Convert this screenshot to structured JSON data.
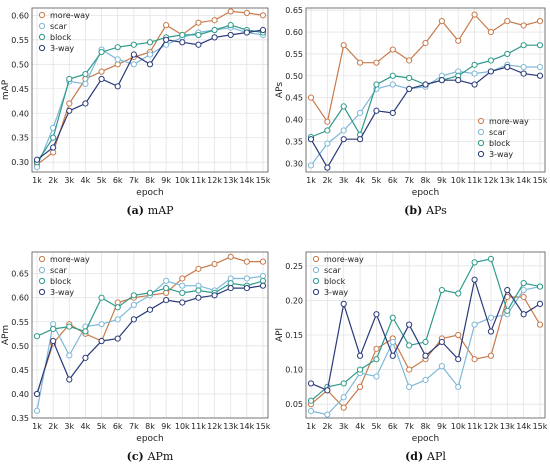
{
  "chart_data": [
    {
      "type": "line",
      "caption_letter": "(a)",
      "caption_text": "mAP",
      "xlabel": "epoch",
      "ylabel": "mAP",
      "categories": [
        "1k",
        "2k",
        "3k",
        "4k",
        "5k",
        "6k",
        "7k",
        "8k",
        "9k",
        "10k",
        "11k",
        "12k",
        "13k",
        "14k",
        "15k"
      ],
      "ylim": [
        0.28,
        0.615
      ],
      "yticks": [
        0.3,
        0.35,
        0.4,
        0.45,
        0.5,
        0.55,
        0.6
      ],
      "ytick_labels": [
        "0.30",
        "0.35",
        "0.40",
        "0.45",
        "0.50",
        "0.55",
        "0.60"
      ],
      "grid": true,
      "legend_position": "top-left",
      "series": [
        {
          "name": "more-way",
          "color": "#c87a4a",
          "values": [
            0.295,
            0.32,
            0.42,
            0.47,
            0.485,
            0.5,
            0.515,
            0.525,
            0.58,
            0.56,
            0.585,
            0.59,
            0.608,
            0.605,
            0.6
          ]
        },
        {
          "name": "scar",
          "color": "#7fb8d8",
          "values": [
            0.29,
            0.37,
            0.465,
            0.46,
            0.53,
            0.51,
            0.5,
            0.52,
            0.54,
            0.555,
            0.565,
            0.57,
            0.575,
            0.565,
            0.56
          ]
        },
        {
          "name": "block",
          "color": "#2e9a8a",
          "values": [
            0.3,
            0.35,
            0.47,
            0.48,
            0.525,
            0.535,
            0.54,
            0.545,
            0.555,
            0.56,
            0.56,
            0.57,
            0.58,
            0.57,
            0.565
          ]
        },
        {
          "name": "3-way",
          "color": "#2a3a7a",
          "values": [
            0.305,
            0.33,
            0.405,
            0.42,
            0.47,
            0.455,
            0.52,
            0.5,
            0.55,
            0.545,
            0.54,
            0.555,
            0.56,
            0.565,
            0.57
          ]
        }
      ]
    },
    {
      "type": "line",
      "caption_letter": "(b)",
      "caption_text": "APs",
      "xlabel": "epoch",
      "ylabel": "APs",
      "categories": [
        "1k",
        "2k",
        "3k",
        "4k",
        "5k",
        "6k",
        "7k",
        "8k",
        "9k",
        "10k",
        "11k",
        "12k",
        "13k",
        "14k",
        "15k"
      ],
      "ylim": [
        0.28,
        0.655
      ],
      "yticks": [
        0.3,
        0.35,
        0.4,
        0.45,
        0.5,
        0.55,
        0.6,
        0.65
      ],
      "ytick_labels": [
        "0.30",
        "0.35",
        "0.40",
        "0.45",
        "0.50",
        "0.55",
        "0.60",
        "0.65"
      ],
      "grid": true,
      "legend_position": "bottom-right",
      "series": [
        {
          "name": "more-way",
          "color": "#c87a4a",
          "values": [
            0.45,
            0.395,
            0.57,
            0.53,
            0.53,
            0.56,
            0.535,
            0.575,
            0.625,
            0.58,
            0.64,
            0.6,
            0.625,
            0.615,
            0.625
          ]
        },
        {
          "name": "scar",
          "color": "#7fb8d8",
          "values": [
            0.295,
            0.345,
            0.375,
            0.415,
            0.47,
            0.48,
            0.47,
            0.475,
            0.5,
            0.51,
            0.505,
            0.51,
            0.525,
            0.52,
            0.52
          ]
        },
        {
          "name": "block",
          "color": "#2e9a8a",
          "values": [
            0.36,
            0.375,
            0.43,
            0.365,
            0.48,
            0.5,
            0.495,
            0.48,
            0.49,
            0.5,
            0.525,
            0.535,
            0.55,
            0.57,
            0.57
          ]
        },
        {
          "name": "3-way",
          "color": "#2a3a7a",
          "values": [
            0.355,
            0.29,
            0.355,
            0.355,
            0.42,
            0.415,
            0.47,
            0.48,
            0.49,
            0.49,
            0.48,
            0.51,
            0.52,
            0.505,
            0.5
          ]
        }
      ]
    },
    {
      "type": "line",
      "caption_letter": "(c)",
      "caption_text": "APm",
      "xlabel": "epoch",
      "ylabel": "APm",
      "categories": [
        "1k",
        "2k",
        "3k",
        "4k",
        "5k",
        "6k",
        "7k",
        "8k",
        "9k",
        "10k",
        "11k",
        "12k",
        "13k",
        "14k",
        "15k"
      ],
      "ylim": [
        0.35,
        0.695
      ],
      "yticks": [
        0.35,
        0.4,
        0.45,
        0.5,
        0.55,
        0.6,
        0.65
      ],
      "ytick_labels": [
        "0.35",
        "0.40",
        "0.45",
        "0.50",
        "0.55",
        "0.60",
        "0.65"
      ],
      "grid": true,
      "legend_position": "top-left",
      "series": [
        {
          "name": "more-way",
          "color": "#c87a4a",
          "values": [
            0.4,
            0.505,
            0.545,
            0.525,
            0.51,
            0.59,
            0.6,
            0.605,
            0.61,
            0.64,
            0.66,
            0.67,
            0.685,
            0.675,
            0.675
          ]
        },
        {
          "name": "scar",
          "color": "#7fb8d8",
          "values": [
            0.365,
            0.545,
            0.48,
            0.54,
            0.545,
            0.555,
            0.585,
            0.605,
            0.635,
            0.625,
            0.625,
            0.615,
            0.64,
            0.64,
            0.645
          ]
        },
        {
          "name": "block",
          "color": "#2e9a8a",
          "values": [
            0.52,
            0.535,
            0.54,
            0.53,
            0.6,
            0.58,
            0.605,
            0.61,
            0.62,
            0.61,
            0.615,
            0.61,
            0.63,
            0.625,
            0.635
          ]
        },
        {
          "name": "3-way",
          "color": "#2a3a7a",
          "values": [
            0.4,
            0.51,
            0.43,
            0.475,
            0.51,
            0.515,
            0.555,
            0.575,
            0.595,
            0.59,
            0.6,
            0.605,
            0.62,
            0.62,
            0.625
          ]
        }
      ]
    },
    {
      "type": "line",
      "caption_letter": "(d)",
      "caption_text": "APl",
      "xlabel": "epoch",
      "ylabel": "APl",
      "categories": [
        "1k",
        "2k",
        "3k",
        "4k",
        "5k",
        "6k",
        "7k",
        "8k",
        "9k",
        "10k",
        "11k",
        "12k",
        "13k",
        "14k",
        "15k"
      ],
      "ylim": [
        0.03,
        0.27
      ],
      "yticks": [
        0.05,
        0.1,
        0.15,
        0.2,
        0.25
      ],
      "ytick_labels": [
        "0.05",
        "0.10",
        "0.15",
        "0.20",
        "0.25"
      ],
      "grid": true,
      "legend_position": "top-left",
      "series": [
        {
          "name": "more-way",
          "color": "#c87a4a",
          "values": [
            0.05,
            0.07,
            0.045,
            0.075,
            0.13,
            0.145,
            0.1,
            0.115,
            0.145,
            0.15,
            0.115,
            0.12,
            0.205,
            0.205,
            0.165
          ]
        },
        {
          "name": "scar",
          "color": "#7fb8d8",
          "values": [
            0.04,
            0.035,
            0.06,
            0.095,
            0.09,
            0.14,
            0.075,
            0.085,
            0.105,
            0.075,
            0.165,
            0.175,
            0.18,
            0.215,
            0.22
          ]
        },
        {
          "name": "block",
          "color": "#2e9a8a",
          "values": [
            0.055,
            0.075,
            0.08,
            0.1,
            0.115,
            0.175,
            0.135,
            0.14,
            0.215,
            0.21,
            0.255,
            0.26,
            0.185,
            0.225,
            0.22
          ]
        },
        {
          "name": "3-way",
          "color": "#2a3a7a",
          "values": [
            0.08,
            0.07,
            0.195,
            0.12,
            0.18,
            0.12,
            0.165,
            0.12,
            0.14,
            0.115,
            0.23,
            0.155,
            0.215,
            0.18,
            0.195
          ]
        }
      ]
    }
  ]
}
